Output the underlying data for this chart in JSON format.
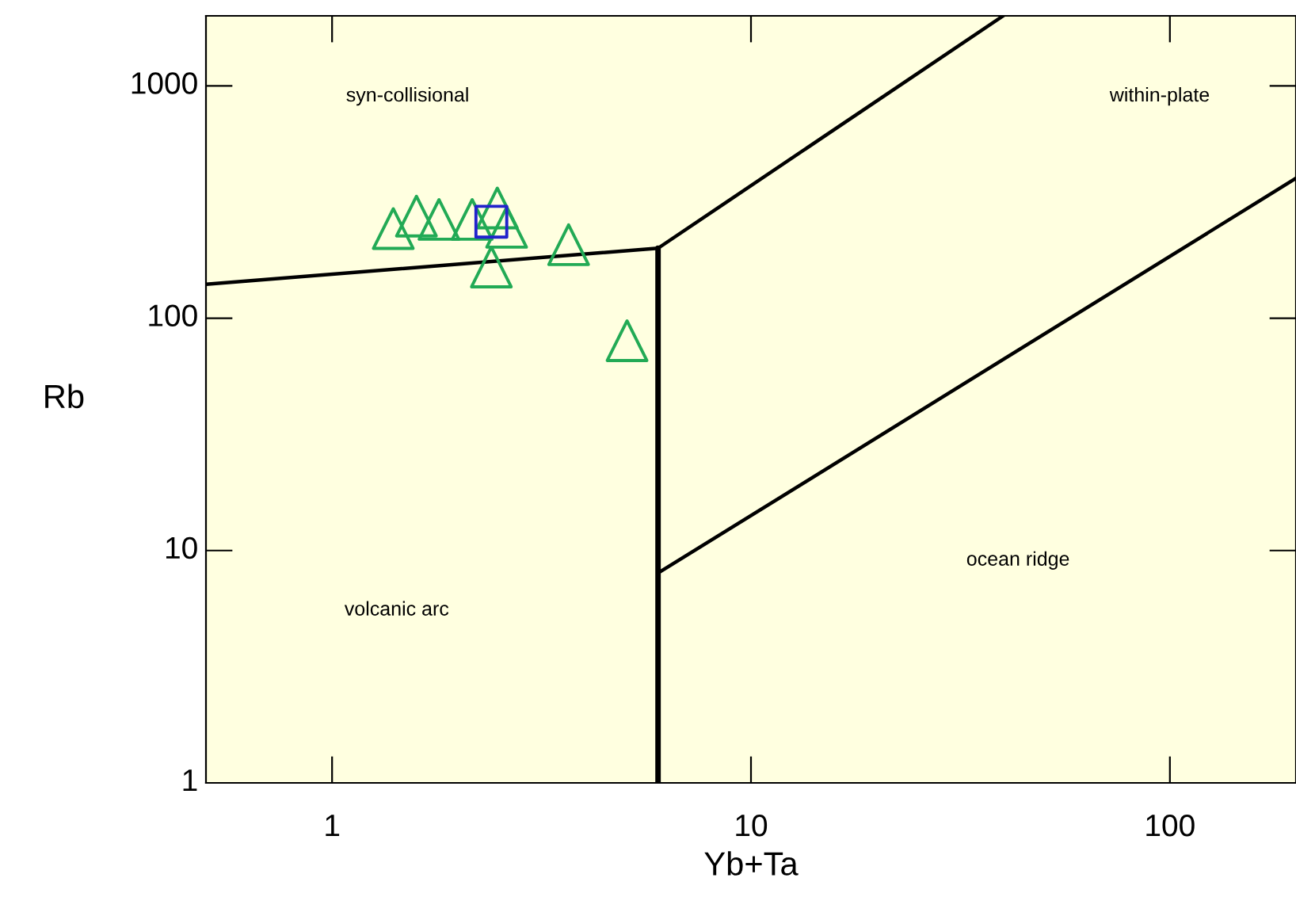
{
  "chart_data": {
    "type": "scatter",
    "xlabel": "Yb+Ta",
    "ylabel": "Rb",
    "log": "xy",
    "xlim": [
      0.5,
      200
    ],
    "ylim": [
      1,
      2000
    ],
    "xticks": [
      1,
      10,
      100
    ],
    "yticks": [
      1,
      10,
      100,
      1000
    ],
    "grid": false,
    "legend": false,
    "series": [
      {
        "type": "line",
        "color": "#000000",
        "line_style": "solid",
        "marker": "none",
        "x": [
          0.5,
          6
        ],
        "values": [
          140,
          200
        ]
      },
      {
        "type": "line",
        "color": "#000000",
        "line_style": "solid",
        "marker": "none",
        "x": [
          6,
          6
        ],
        "values": [
          1,
          200
        ]
      },
      {
        "type": "line",
        "color": "#000000",
        "line_style": "solid",
        "marker": "none",
        "x": [
          6,
          40
        ],
        "values": [
          200,
          2000
        ]
      },
      {
        "type": "line",
        "color": "#000000",
        "line_style": "solid",
        "marker": "none",
        "x": [
          6,
          200
        ],
        "values": [
          8,
          400
        ]
      },
      {
        "color": "#22aa55",
        "marker": "triangle",
        "x": [
          1.4,
          1.59,
          1.8,
          2.16,
          2.48,
          2.61,
          2.4,
          3.67,
          5.06
        ],
        "values": [
          243,
          275,
          266,
          266,
          298,
          246,
          166,
          207,
          80
        ]
      },
      {
        "color": "#2222cc",
        "marker": "square",
        "x": [
          2.4
        ],
        "values": [
          260
        ]
      }
    ],
    "annotations": [
      "syn-collisional",
      "within-plate",
      "ocean ridge",
      "volcanic arc"
    ]
  }
}
